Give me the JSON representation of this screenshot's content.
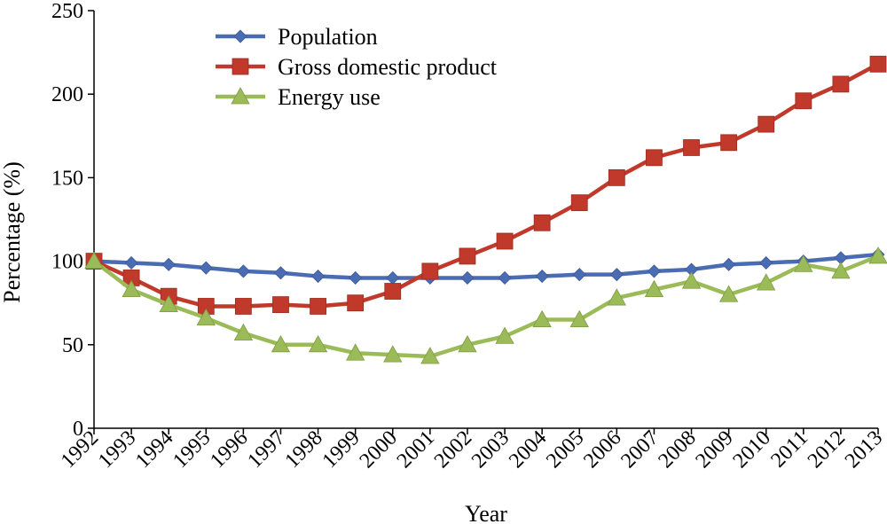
{
  "chart_data": {
    "type": "line",
    "title": "",
    "xlabel": "Year",
    "ylabel": "Percentage (%)",
    "ylim": [
      0,
      250
    ],
    "yticks": [
      0,
      50,
      100,
      150,
      200,
      250
    ],
    "grid": false,
    "legend_position": "top-left",
    "categories": [
      "1992",
      "1993",
      "1994",
      "1995",
      "1996",
      "1997",
      "1998",
      "1999",
      "2000",
      "2001",
      "2002",
      "2003",
      "2004",
      "2005",
      "2006",
      "2007",
      "2008",
      "2009",
      "2010",
      "2011",
      "2012",
      "2013"
    ],
    "series": [
      {
        "name": "Population",
        "color": "#4a6cb3",
        "marker": "diamond",
        "values": [
          100,
          99,
          98,
          96,
          94,
          93,
          91,
          90,
          90,
          90,
          90,
          90,
          91,
          92,
          92,
          94,
          95,
          98,
          99,
          100,
          102,
          104
        ]
      },
      {
        "name": "Gross domestic product",
        "color": "#c0392b",
        "marker": "square",
        "values": [
          100,
          90,
          79,
          73,
          73,
          74,
          73,
          75,
          82,
          94,
          103,
          112,
          123,
          135,
          150,
          162,
          168,
          171,
          182,
          196,
          206,
          218
        ]
      },
      {
        "name": "Energy use",
        "color": "#9bbb59",
        "marker": "triangle",
        "values": [
          100,
          83,
          74,
          66,
          57,
          50,
          50,
          45,
          44,
          43,
          50,
          55,
          65,
          65,
          78,
          83,
          88,
          80,
          87,
          98,
          94,
          103
        ]
      }
    ]
  }
}
